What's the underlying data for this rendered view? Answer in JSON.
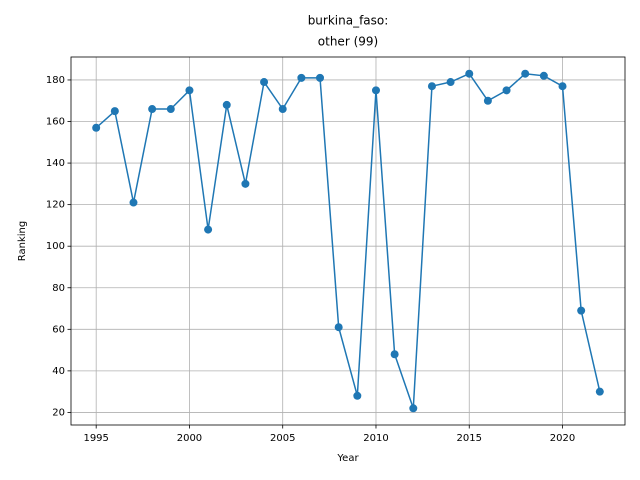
{
  "chart_data": {
    "type": "line",
    "title": [
      "burkina_faso:",
      "other (99)"
    ],
    "xlabel": "Year",
    "ylabel": "Ranking",
    "x": [
      1995,
      1996,
      1997,
      1998,
      1999,
      2000,
      2001,
      2002,
      2003,
      2004,
      2005,
      2006,
      2007,
      2008,
      2009,
      2010,
      2011,
      2012,
      2013,
      2014,
      2015,
      2016,
      2017,
      2018,
      2019,
      2020,
      2021,
      2022
    ],
    "values": [
      157,
      165,
      121,
      166,
      166,
      175,
      108,
      168,
      130,
      179,
      166,
      181,
      181,
      61,
      28,
      175,
      48,
      22,
      177,
      179,
      183,
      170,
      175,
      183,
      182,
      177,
      69,
      30
    ],
    "color": "#1f77b4",
    "xlim": [
      1993.65,
      2023.35
    ],
    "xticks": [
      1995,
      2000,
      2005,
      2010,
      2015,
      2020
    ],
    "ylim": [
      13.95,
      191.05
    ],
    "yticks": [
      20,
      40,
      60,
      80,
      100,
      120,
      140,
      160,
      180
    ],
    "grid": true
  }
}
